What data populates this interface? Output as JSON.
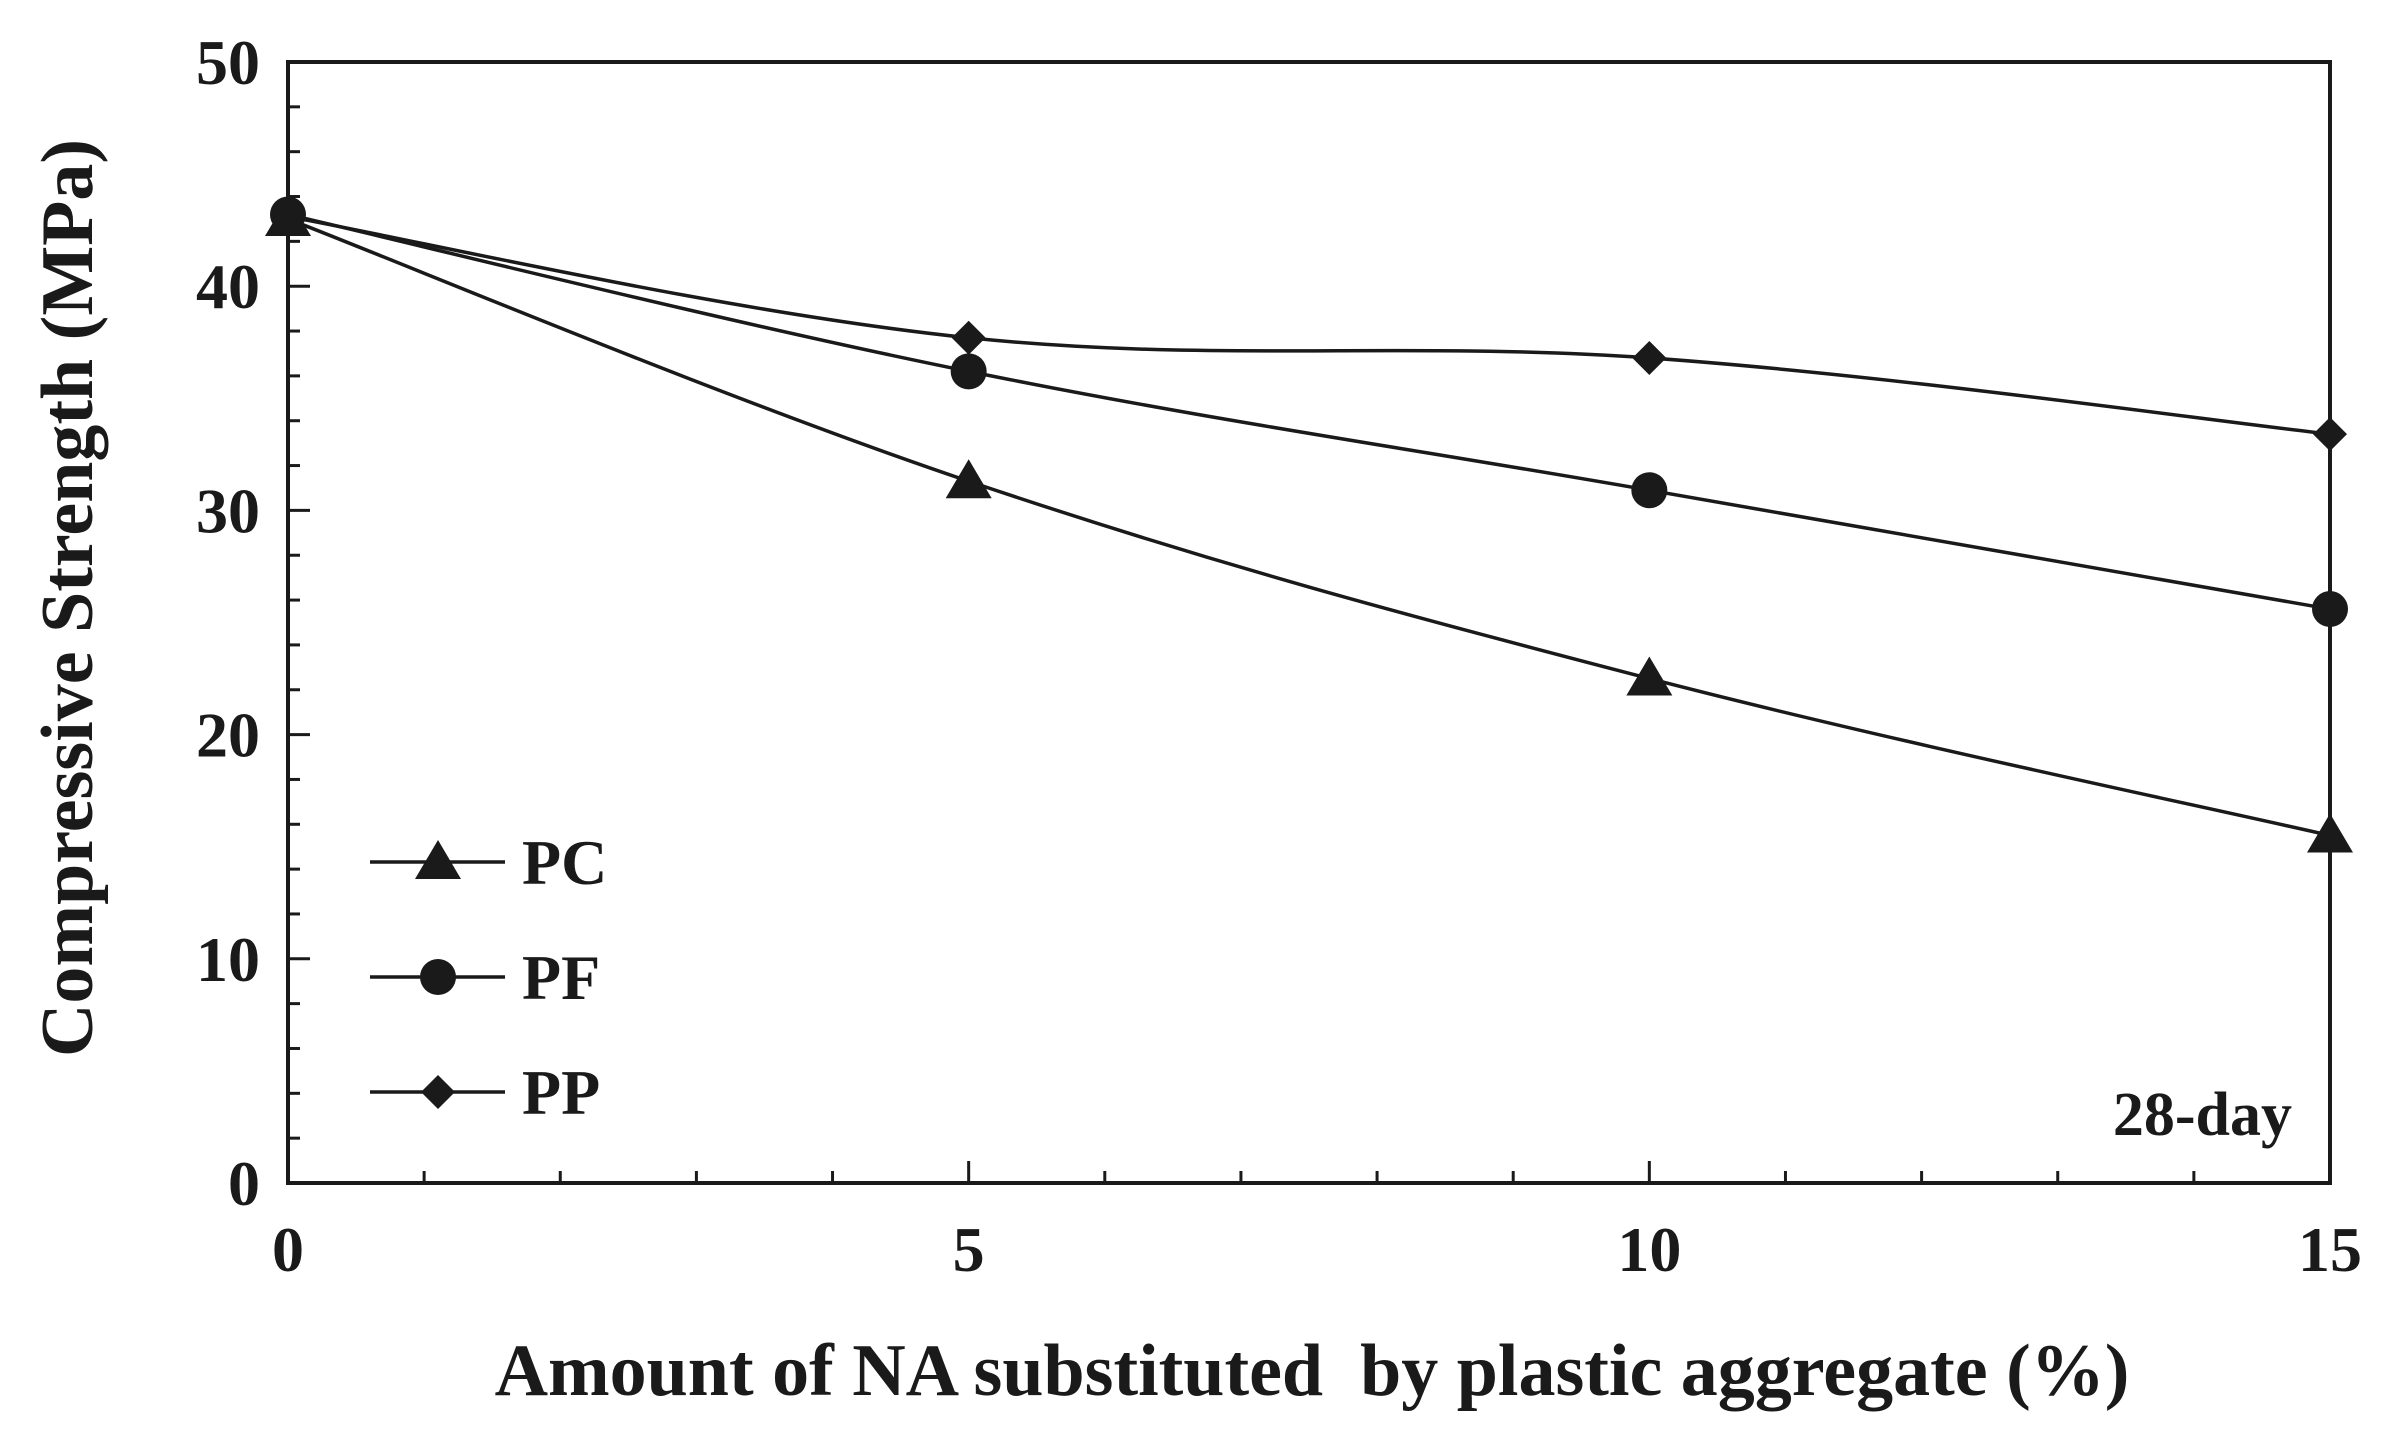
{
  "chart_data": {
    "type": "line",
    "title": "",
    "xlabel": "Amount of NA substituted  by plastic aggregate (%)",
    "ylabel": "Compressive Strength (MPa)",
    "xlim": [
      0,
      15
    ],
    "ylim": [
      0,
      50
    ],
    "xticks": [
      0,
      5,
      10,
      15
    ],
    "xticks_minor_step": 1,
    "yticks": [
      0,
      10,
      20,
      30,
      40,
      50
    ],
    "yticks_minor_step": 2,
    "grid": false,
    "legend_position": "bottom-left",
    "annotation": "28-day",
    "series": [
      {
        "name": "PC",
        "marker": "triangle",
        "x": [
          0,
          5,
          10,
          15
        ],
        "y": [
          43.0,
          31.3,
          22.5,
          15.5
        ]
      },
      {
        "name": "PF",
        "marker": "circle",
        "x": [
          0,
          5,
          10,
          15
        ],
        "y": [
          43.2,
          36.2,
          30.9,
          25.6
        ]
      },
      {
        "name": "PP",
        "marker": "diamond",
        "x": [
          0,
          5,
          10,
          15
        ],
        "y": [
          43.1,
          37.7,
          36.8,
          33.4
        ]
      }
    ],
    "colors": {
      "line": "#1a1a1a",
      "marker": "#1a1a1a",
      "axis": "#1a1a1a"
    }
  }
}
